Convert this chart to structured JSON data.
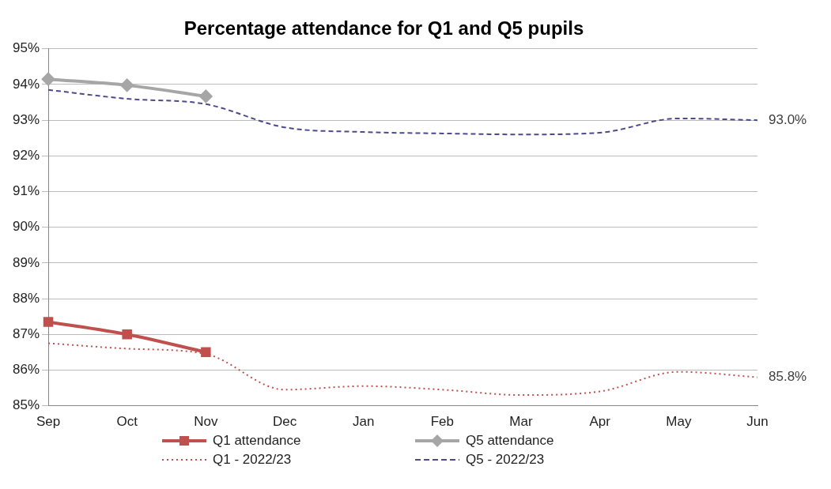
{
  "chart_data": {
    "type": "line",
    "title": "Percentage attendance for Q1 and Q5 pupils",
    "categories": [
      "Sep",
      "Oct",
      "Nov",
      "Dec",
      "Jan",
      "Feb",
      "Mar",
      "Apr",
      "May",
      "Jun"
    ],
    "series": [
      {
        "name": "Q1 attendance",
        "color": "#c0504d",
        "marker": "square",
        "line_style": "solid",
        "values": [
          87.35,
          87.0,
          86.5,
          null,
          null,
          null,
          null,
          null,
          null,
          null
        ]
      },
      {
        "name": "Q5 attendance",
        "color": "#a6a6a6",
        "marker": "diamond",
        "line_style": "solid",
        "values": [
          94.15,
          93.98,
          93.67,
          null,
          null,
          null,
          null,
          null,
          null,
          null
        ]
      },
      {
        "name": "Q1 - 2022/23",
        "color": "#c0504d",
        "marker": "none",
        "line_style": "dotted",
        "values": [
          86.75,
          86.6,
          86.45,
          85.45,
          85.55,
          85.45,
          85.3,
          85.4,
          85.95,
          85.8
        ]
      },
      {
        "name": "Q5 - 2022/23",
        "color": "#4b4a8a",
        "marker": "none",
        "line_style": "dashed",
        "values": [
          93.85,
          93.6,
          93.45,
          92.8,
          92.67,
          92.63,
          92.6,
          92.65,
          93.05,
          93.0
        ]
      }
    ],
    "ylim": [
      85,
      95
    ],
    "yticks": [
      {
        "value": 85,
        "label": "85%"
      },
      {
        "value": 86,
        "label": "86%"
      },
      {
        "value": 87,
        "label": "87%"
      },
      {
        "value": 88,
        "label": "88%"
      },
      {
        "value": 89,
        "label": "89%"
      },
      {
        "value": 90,
        "label": "90%"
      },
      {
        "value": 91,
        "label": "91%"
      },
      {
        "value": 92,
        "label": "92%"
      },
      {
        "value": 93,
        "label": "93%"
      },
      {
        "value": 94,
        "label": "94%"
      },
      {
        "value": 95,
        "label": "95%"
      }
    ],
    "grid": "y",
    "legend": "bottom",
    "annotations": [
      {
        "text": "93.0%",
        "x": "Jun",
        "y": 93.0
      },
      {
        "text": "85.8%",
        "x": "Jun",
        "y": 85.8
      }
    ]
  }
}
